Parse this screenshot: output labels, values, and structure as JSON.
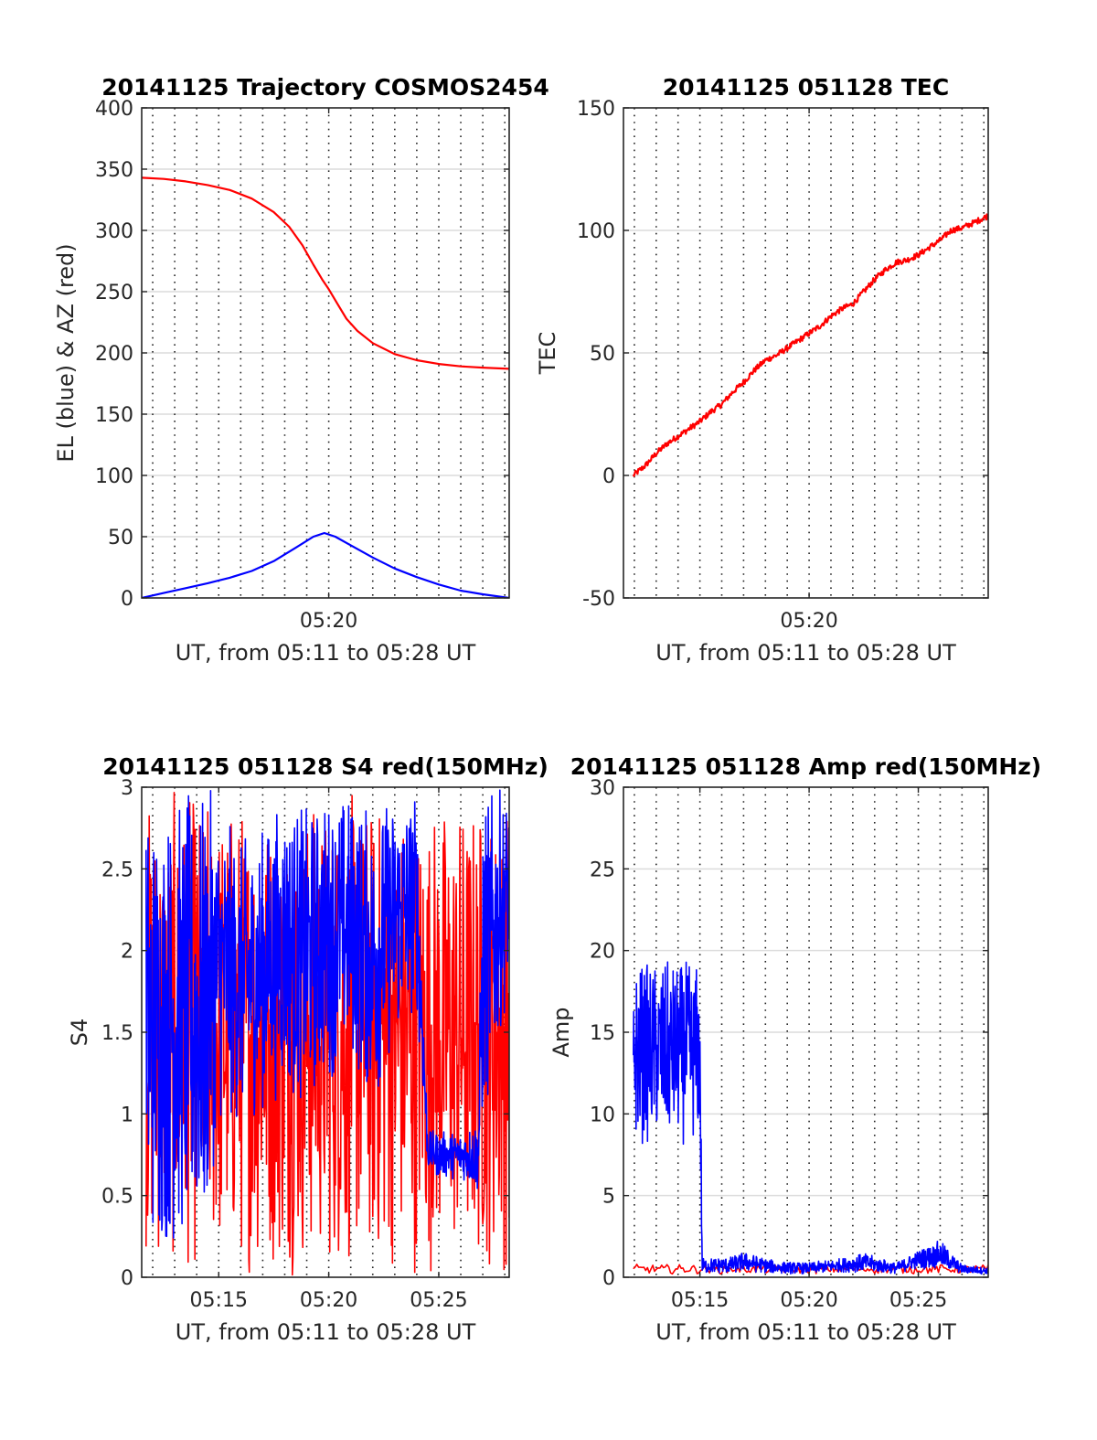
{
  "chart_data": [
    {
      "type": "line",
      "title": "20141125 Trajectory COSMOS2454",
      "xlabel": "UT, from 05:11 to 05:28 UT",
      "ylabel": "EL (blue) & AZ (red)",
      "xlim": [
        11.5,
        28.2
      ],
      "ylim": [
        0,
        400
      ],
      "yticks": [
        0,
        50,
        100,
        150,
        200,
        250,
        300,
        350,
        400
      ],
      "xticks": [
        {
          "value": 20,
          "label": "05:20"
        }
      ],
      "grid": true,
      "series": [
        {
          "color": "#ff0000",
          "x": [
            11.5,
            12.5,
            13.5,
            14.5,
            15.5,
            16.5,
            17.5,
            18.2,
            18.8,
            19.3,
            19.7,
            20.0,
            20.4,
            20.8,
            21.3,
            22.0,
            23.0,
            24.0,
            25.0,
            26.0,
            27.0,
            28.2
          ],
          "y": [
            343,
            342,
            340,
            337,
            333,
            326,
            315,
            303,
            288,
            272,
            260,
            252,
            240,
            228,
            218,
            208,
            199,
            194,
            191,
            189,
            188,
            187
          ]
        },
        {
          "color": "#0000ff",
          "x": [
            11.5,
            12.5,
            13.5,
            14.5,
            15.5,
            16.5,
            17.5,
            18.5,
            19.3,
            19.8,
            20.3,
            21.0,
            22.0,
            23.0,
            24.0,
            25.0,
            26.0,
            27.0,
            28.2
          ],
          "y": [
            0,
            4,
            8,
            12,
            16.5,
            22,
            30,
            41,
            50,
            53,
            50,
            43,
            33,
            24,
            17,
            11,
            6,
            3,
            0
          ]
        }
      ]
    },
    {
      "type": "line",
      "title": "20141125 051128 TEC",
      "xlabel": "UT, from 05:11 to 05:28 UT",
      "ylabel": "TEC",
      "xlim": [
        11.5,
        28.2
      ],
      "ylim": [
        -50,
        150
      ],
      "yticks": [
        -50,
        0,
        50,
        100,
        150
      ],
      "xticks": [
        {
          "value": 20,
          "label": "05:20"
        }
      ],
      "grid": true,
      "series": [
        {
          "color": "#ff0000",
          "noise": 1.2,
          "x": [
            11.95,
            12.5,
            13.0,
            13.5,
            14.0,
            14.5,
            15.0,
            15.5,
            16.0,
            16.5,
            17.0,
            17.5,
            18.0,
            18.5,
            19.0,
            19.5,
            20.0,
            20.5,
            21.0,
            21.5,
            22.0,
            22.5,
            23.0,
            23.5,
            24.0,
            24.5,
            25.0,
            25.5,
            26.0,
            26.5,
            27.0,
            27.5,
            28.2
          ],
          "y": [
            0,
            4,
            9,
            13,
            16,
            19,
            22,
            26,
            29,
            34,
            38,
            43,
            47,
            49,
            52,
            55,
            58,
            61,
            65,
            68,
            70,
            75,
            80,
            84,
            87,
            88,
            90,
            93,
            96,
            100,
            101,
            103,
            106
          ]
        }
      ]
    },
    {
      "type": "line",
      "title": "20141125 051128 S4 red(150MHz)",
      "xlabel": "UT, from 05:11 to 05:28 UT",
      "ylabel": "S4",
      "xlim": [
        11.5,
        28.2
      ],
      "ylim": [
        0,
        3
      ],
      "yticks": [
        0,
        0.5,
        1,
        1.5,
        2,
        2.5,
        3
      ],
      "yticklabels": [
        "0",
        "0.5",
        "1",
        "1.5",
        "2",
        "2.5",
        "3"
      ],
      "xticks": [
        {
          "value": 15,
          "label": "05:15"
        },
        {
          "value": 20,
          "label": "05:20"
        },
        {
          "value": 25,
          "label": "05:25"
        }
      ],
      "grid": true,
      "series": [
        {
          "color": "#ff0000",
          "style": "noisy",
          "x_start": 11.7,
          "x_end": 28.2,
          "points": 700,
          "envelope_x": [
            11.7,
            14.5,
            15.0,
            17.0,
            18.0,
            20.0,
            21.0,
            22.0,
            24.0,
            25.0,
            26.0,
            27.0,
            28.2
          ],
          "envelope_low": [
            0,
            0,
            0,
            0,
            0,
            0,
            0,
            0,
            0,
            0,
            0,
            0,
            0
          ],
          "envelope_high": [
            3,
            3,
            3,
            3,
            3,
            3,
            3,
            3,
            3,
            3,
            3,
            3,
            3
          ]
        },
        {
          "color": "#0000ff",
          "style": "noisy",
          "x_start": 11.7,
          "x_end": 28.2,
          "points": 900,
          "envelope_x": [
            11.7,
            12.0,
            13.5,
            14.4,
            14.6,
            15.0,
            16.0,
            17.0,
            18.0,
            19.0,
            20.0,
            21.0,
            22.0,
            23.0,
            24.0,
            24.5,
            25.0,
            26.0,
            26.8,
            27.0,
            28.2
          ],
          "envelope_low": [
            0.1,
            0.12,
            0.12,
            0.12,
            0.5,
            0.9,
            0.9,
            1.0,
            1.1,
            1.0,
            1.2,
            1.3,
            1.0,
            1.4,
            1.6,
            0.65,
            0.6,
            0.6,
            0.5,
            0.8,
            1.8
          ],
          "envelope_high": [
            3,
            3,
            3,
            3,
            3,
            2.9,
            2.7,
            2.8,
            3,
            2.9,
            3,
            3,
            2.9,
            3,
            3,
            0.9,
            0.9,
            0.9,
            1.0,
            3,
            3
          ]
        }
      ]
    },
    {
      "type": "line",
      "title": "20141125 051128 Amp red(150MHz)",
      "xlabel": "UT, from 05:11 to 05:28 UT",
      "ylabel": "Amp",
      "xlim": [
        11.5,
        28.2
      ],
      "ylim": [
        0,
        30
      ],
      "yticks": [
        0,
        5,
        10,
        15,
        20,
        25,
        30
      ],
      "xticks": [
        {
          "value": 15,
          "label": "05:15"
        },
        {
          "value": 20,
          "label": "05:20"
        },
        {
          "value": 25,
          "label": "05:25"
        }
      ],
      "grid": true,
      "series": [
        {
          "color": "#ff0000",
          "style": "noisy",
          "x_start": 11.95,
          "x_end": 28.2,
          "points": 200,
          "envelope_x": [
            11.95,
            28.2
          ],
          "envelope_low": [
            0.2,
            0.2
          ],
          "envelope_high": [
            0.8,
            0.8
          ]
        },
        {
          "color": "#0000ff",
          "style": "noisy",
          "x_start": 11.95,
          "x_end": 28.2,
          "points": 900,
          "envelope_x": [
            11.95,
            12.0,
            15.0,
            15.1,
            16.5,
            17.0,
            18.5,
            20.0,
            21.5,
            22.5,
            24.0,
            25.0,
            26.0,
            27.0,
            28.2
          ],
          "envelope_low": [
            3,
            8,
            8,
            0.2,
            0.2,
            0.3,
            0.2,
            0.2,
            0.3,
            0.3,
            0.2,
            0.5,
            0.5,
            0.2,
            0.2
          ],
          "envelope_high": [
            19,
            19.5,
            19.5,
            1.2,
            1.3,
            1.6,
            1.0,
            0.9,
            1.2,
            1.5,
            0.9,
            1.7,
            2.3,
            0.8,
            0.6
          ]
        }
      ]
    }
  ]
}
